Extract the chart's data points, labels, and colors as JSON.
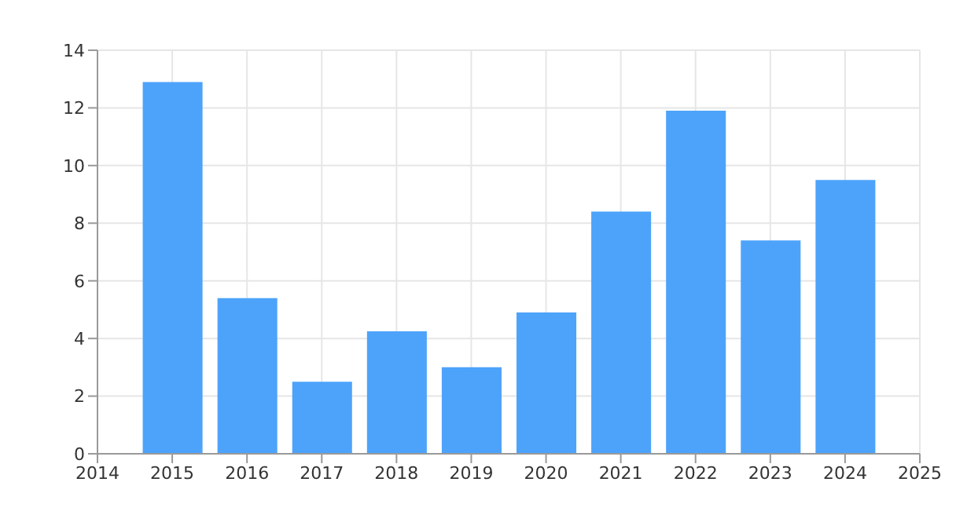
{
  "chart_data": {
    "type": "bar",
    "x": [
      2015,
      2016,
      2017,
      2018,
      2019,
      2020,
      2021,
      2022,
      2023,
      2024
    ],
    "values": [
      12.9,
      5.4,
      2.5,
      4.25,
      3.0,
      4.9,
      8.4,
      11.9,
      7.4,
      9.5
    ],
    "color": "#4da3fa",
    "xlim": [
      2014,
      2025
    ],
    "xticks": [
      2014,
      2015,
      2016,
      2017,
      2018,
      2019,
      2020,
      2021,
      2022,
      2023,
      2024,
      2025
    ],
    "ylim": [
      0,
      14
    ],
    "yticks": [
      0,
      2,
      4,
      6,
      8,
      10,
      12,
      14
    ],
    "grid": true
  }
}
